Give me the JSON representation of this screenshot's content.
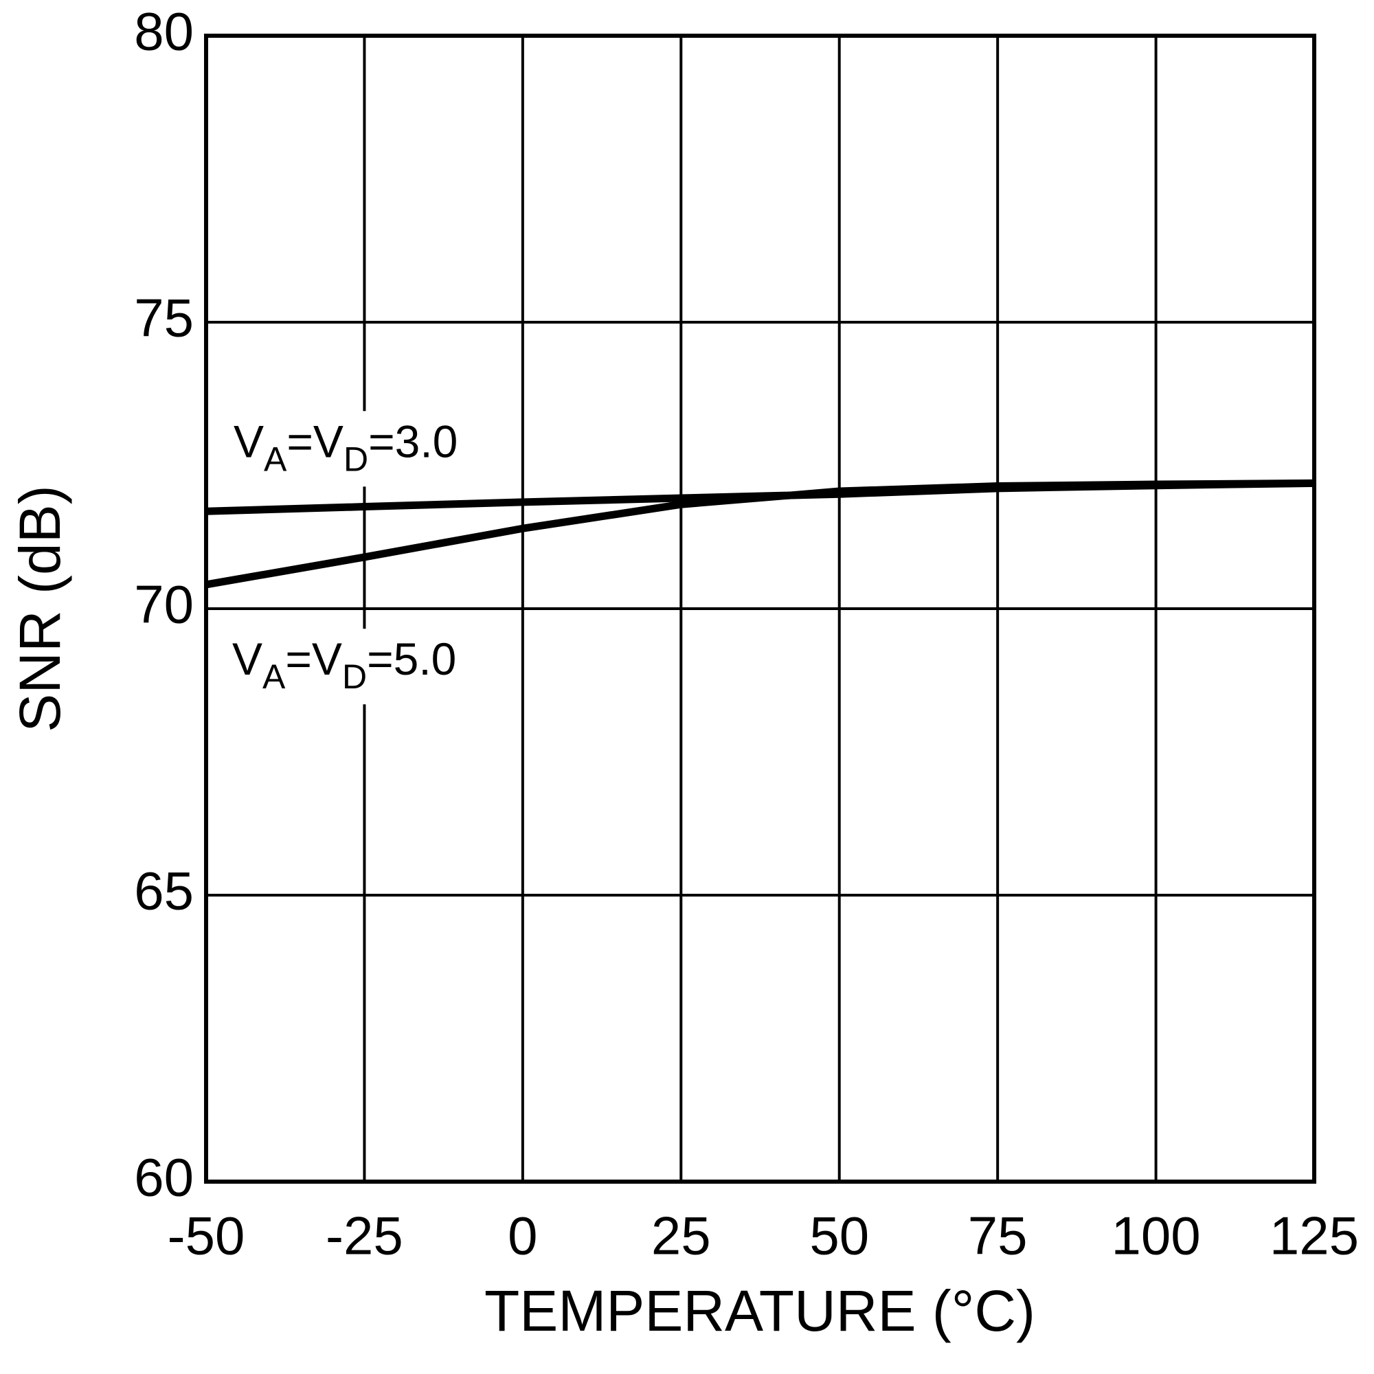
{
  "chart_data": {
    "type": "line",
    "x_label": "TEMPERATURE (°C)",
    "y_label": "SNR (dB)",
    "x": [
      -50,
      -25,
      0,
      25,
      50,
      75,
      100,
      125
    ],
    "series": [
      {
        "color": "#000000",
        "values": [
          71.7,
          71.78,
          71.86,
          71.93,
          72.0,
          72.1,
          72.15,
          72.19
        ]
      },
      {
        "color": "#000000",
        "values": [
          70.42,
          70.9,
          71.4,
          71.82,
          72.05,
          72.14,
          72.17,
          72.19
        ]
      }
    ],
    "annotations": [
      {
        "parts": [
          "V",
          "A",
          "=V",
          "D",
          "=3.0"
        ]
      },
      {
        "parts": [
          "V",
          "A",
          "=V",
          "D",
          "=5.0"
        ]
      }
    ],
    "xlim": [
      -50,
      125
    ],
    "xticks": [
      -50,
      -25,
      0,
      25,
      50,
      75,
      100,
      125
    ],
    "ylim": [
      60,
      80
    ],
    "yticks": [
      60,
      65,
      70,
      75,
      80
    ],
    "grid": true
  }
}
